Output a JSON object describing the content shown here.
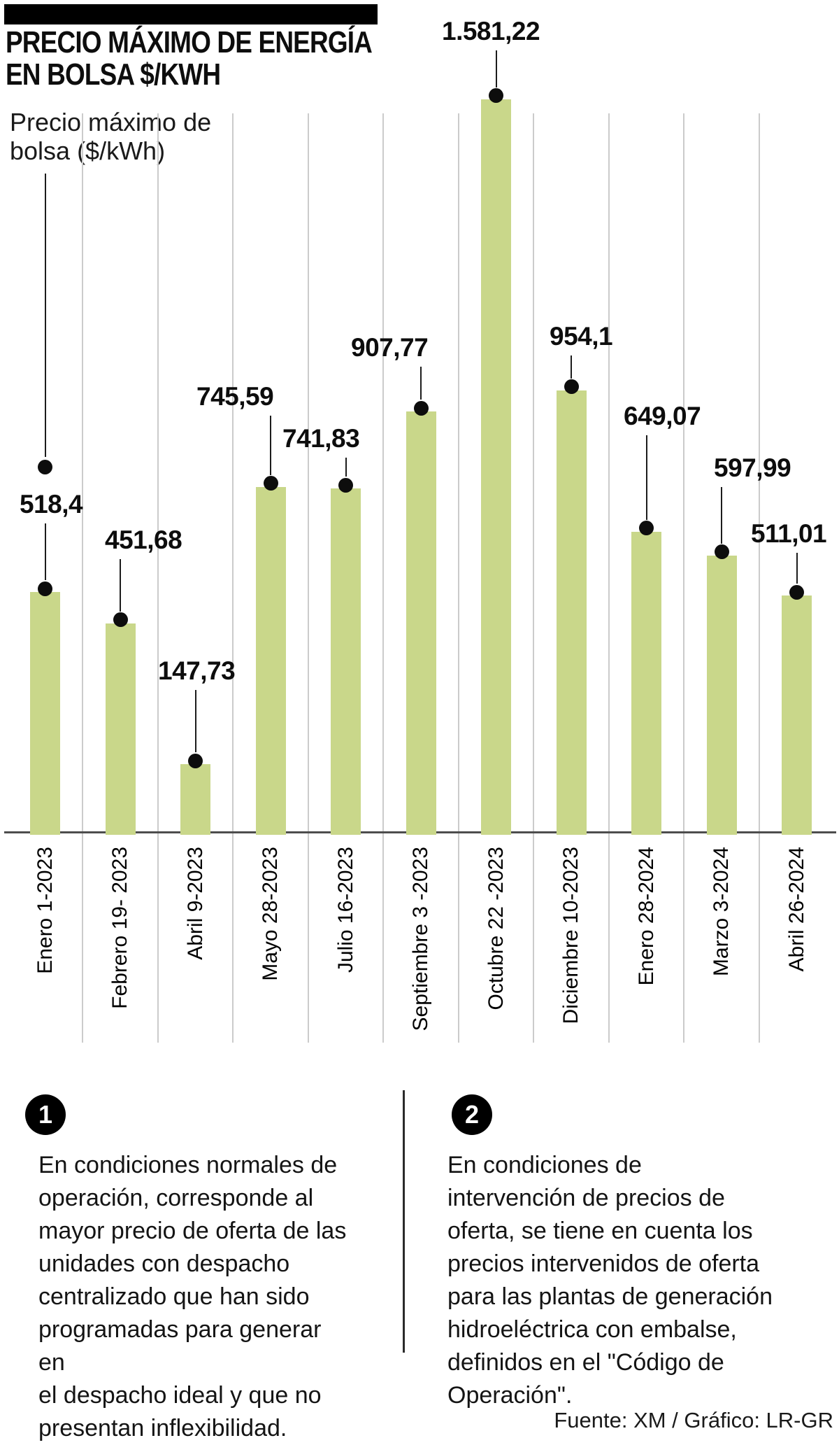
{
  "header": {
    "title_line1": "PRECIO MÁXIMO DE ENERGÍA",
    "title_line2": "EN BOLSA $/KWH",
    "subtitle_line1": "Precio máximo de",
    "subtitle_line2": "bolsa ($/kWh)"
  },
  "chart_data": {
    "type": "bar",
    "title": "PRECIO MÁXIMO DE ENERGÍA EN BOLSA $/KWH",
    "ylabel": "Precio máximo de bolsa ($/kWh)",
    "xlabel": "",
    "categories": [
      "Enero 1-2023",
      "Febrero 19- 2023",
      "Abril 9-2023",
      "Mayo 28-2023",
      "Julio 16-2023",
      "Septiembre 3 -2023",
      "Octubre 22 -2023",
      "Diciembre 10-2023",
      "Enero 28-2024",
      "Marzo 3-2024",
      "Abril 26-2024"
    ],
    "values": [
      518.4,
      451.68,
      147.73,
      745.59,
      741.83,
      907.77,
      1581.22,
      954.1,
      649.07,
      597.99,
      511.01
    ],
    "value_labels": [
      "518,4",
      "451,68",
      "147,73",
      "745,59",
      "741,83",
      "907,77",
      "1.581,22",
      "954,1",
      "649,07",
      "597,99",
      "511,01"
    ],
    "ylim": [
      0,
      1581.22
    ],
    "grid": "vertical-between-categories",
    "legend": "none",
    "bar_color": "#c9d78a",
    "dot_color": "#0d0d0d",
    "gridline_color": "#cbcbcb",
    "axis_color": "#4d4d4d"
  },
  "footnotes": [
    {
      "marker": "1",
      "lines": [
        "En condiciones normales de",
        "operación, corresponde al",
        "mayor precio de oferta de las",
        "unidades con despacho",
        "centralizado que han sido",
        "programadas para generar en",
        "el despacho ideal y que no",
        "presentan inflexibilidad."
      ]
    },
    {
      "marker": "2",
      "lines": [
        "En condiciones de",
        "intervención de precios de",
        "oferta, se tiene en cuenta los",
        "precios intervenidos de oferta",
        "para las plantas de generación",
        "hidroeléctrica con embalse,",
        "definidos en el \"Código de",
        "Operación\"."
      ]
    }
  ],
  "footer": {
    "source": "Fuente: XM / Gráfico: LR-GR"
  }
}
